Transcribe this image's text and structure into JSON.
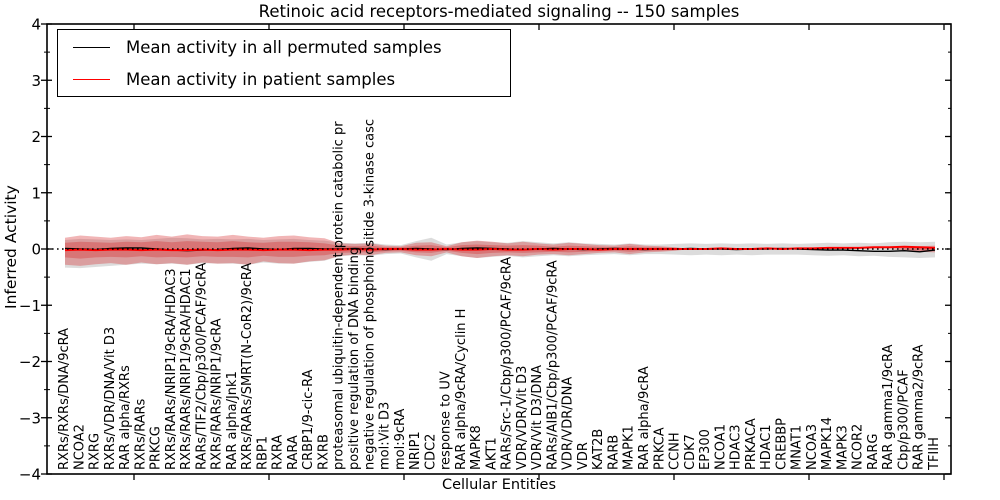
{
  "figure": {
    "title": "Retinoic acid receptors-mediated signaling -- 150 samples",
    "xlabel": "Cellular Entities",
    "ylabel": "Inferred Activity",
    "legend": [
      {
        "label": "Mean activity in all permuted samples",
        "color": "#000000"
      },
      {
        "label": "Mean activity in patient samples",
        "color": "#ff0000"
      }
    ],
    "y_ticks": [
      "4",
      "3",
      "2",
      "1",
      "0",
      "−1",
      "−2",
      "−3",
      "−4"
    ]
  },
  "chart_data": {
    "type": "line",
    "title": "Retinoic acid receptors-mediated signaling -- 150 samples",
    "xlabel": "Cellular Entities",
    "ylabel": "Inferred Activity",
    "ylim": [
      -4,
      4
    ],
    "grid": false,
    "legend_position": "upper left",
    "zero_line": 0,
    "categories": [
      "RXRs/RXRs/DNA/9cRA",
      "NCOA2",
      "RXRG",
      "RXRs/VDR/DNA/Vit D3",
      "RAR alpha/RXRs",
      "RXRs/RARs",
      "PRKCG",
      "RXRs/RARs/NRIP1/9cRA/HDAC3",
      "RXRs/RARs/NRIP1/9cRA/HDAC1",
      "RARs/TIF2/Cbp/p300/PCAF/9cRA",
      "RXRs/RARs/NRIP1/9cRA",
      "RAR alpha/Jnk1",
      "RXRs/RARs/SMRT(N-CoR2)/9cRA",
      "RBP1",
      "RXRA",
      "RARA",
      "CRBP1/9-cic-RA",
      "RXRB",
      "proteasomal ubiquitin-dependent protein catabolic pr",
      "positive regulation of DNA binding",
      "negative regulation of phosphoinositide 3-kinase casc",
      "mol:Vit D3",
      "mol:9cRA",
      "NRIP1",
      "CDC2",
      "response to UV",
      "RAR alpha/9cRA/Cyclin H",
      "MAPK8",
      "AKT1",
      "RARs/Src-1/Cbp/p300/PCAF/9cRA",
      "VDR/VDR/Vit D3",
      "VDR/Vit D3/DNA",
      "RARs/AIB1/Cbp/p300/PCAF/9cRA",
      "VDR/VDR/DNA",
      "VDR",
      "KAT2B",
      "RARB",
      "MAPK1",
      "RAR alpha/9cRA",
      "PRKCA",
      "CCNH",
      "CDK7",
      "EP300",
      "NCOA1",
      "HDAC3",
      "PRKACA",
      "HDAC1",
      "CREBBP",
      "MNAT1",
      "NCOA3",
      "MAPK14",
      "MAPK3",
      "NCOR2",
      "RARG",
      "RAR gamma1/9cRA",
      "Cbp/p300/PCAF",
      "RAR gamma2/9cRA",
      "TFIIH"
    ],
    "series": [
      {
        "name": "Mean activity in all permuted samples",
        "color": "#000000",
        "values": [
          0.01,
          0.0,
          -0.01,
          0.01,
          0.02,
          0.02,
          0.0,
          -0.02,
          -0.03,
          -0.02,
          -0.01,
          0.01,
          0.02,
          0.0,
          -0.01,
          0.01,
          0.01,
          0.0,
          0.0,
          0.01,
          0.0,
          -0.01,
          0.0,
          0.01,
          0.0,
          -0.01,
          0.01,
          0.02,
          0.01,
          0.0,
          -0.01,
          0.0,
          0.01,
          0.0,
          -0.01,
          0.0,
          0.01,
          0.0,
          -0.01,
          0.0,
          0.0,
          0.01,
          0.0,
          0.0,
          -0.01,
          0.0,
          0.0,
          0.01,
          0.0,
          -0.01,
          -0.02,
          -0.02,
          -0.03,
          -0.04,
          -0.04,
          -0.03,
          -0.05,
          -0.02
        ]
      },
      {
        "name": "Mean activity in patient samples",
        "color": "#ff0000",
        "values": [
          -0.02,
          -0.01,
          -0.02,
          -0.01,
          -0.01,
          -0.02,
          -0.01,
          -0.02,
          -0.02,
          -0.01,
          -0.02,
          -0.01,
          -0.01,
          -0.02,
          -0.01,
          -0.01,
          -0.02,
          -0.01,
          -0.01,
          0.0,
          -0.01,
          0.0,
          0.0,
          -0.01,
          -0.01,
          0.0,
          -0.01,
          -0.01,
          0.0,
          -0.01,
          -0.01,
          0.0,
          -0.01,
          0.0,
          0.0,
          -0.01,
          0.0,
          0.0,
          0.0,
          0.0,
          0.0,
          0.0,
          0.0,
          0.01,
          0.0,
          0.0,
          0.01,
          0.0,
          0.01,
          0.01,
          0.02,
          0.02,
          0.02,
          0.03,
          0.03,
          0.04,
          0.03,
          0.02
        ]
      }
    ],
    "bands": [
      {
        "name": "permuted-samples-range",
        "color": "#808080",
        "opacity": 0.28,
        "upper": [
          0.16,
          0.18,
          0.17,
          0.16,
          0.17,
          0.16,
          0.18,
          0.2,
          0.19,
          0.17,
          0.18,
          0.17,
          0.18,
          0.16,
          0.17,
          0.18,
          0.16,
          0.15,
          0.11,
          0.1,
          0.11,
          0.08,
          0.07,
          0.14,
          0.2,
          0.08,
          0.12,
          0.14,
          0.12,
          0.11,
          0.14,
          0.12,
          0.1,
          0.12,
          0.1,
          0.09,
          0.08,
          0.1,
          0.08,
          0.08,
          0.09,
          0.1,
          0.09,
          0.1,
          0.09,
          0.1,
          0.09,
          0.1,
          0.09,
          0.1,
          0.11,
          0.1,
          0.11,
          0.1,
          0.12,
          0.13,
          0.12,
          0.13
        ],
        "lower": [
          -0.33,
          -0.34,
          -0.32,
          -0.3,
          -0.28,
          -0.26,
          -0.27,
          -0.26,
          -0.28,
          -0.25,
          -0.26,
          -0.26,
          -0.28,
          -0.24,
          -0.26,
          -0.26,
          -0.23,
          -0.21,
          -0.13,
          -0.11,
          -0.12,
          -0.09,
          -0.08,
          -0.15,
          -0.21,
          -0.09,
          -0.13,
          -0.16,
          -0.14,
          -0.12,
          -0.15,
          -0.13,
          -0.11,
          -0.13,
          -0.11,
          -0.1,
          -0.09,
          -0.11,
          -0.09,
          -0.09,
          -0.1,
          -0.11,
          -0.1,
          -0.11,
          -0.1,
          -0.11,
          -0.1,
          -0.1,
          -0.1,
          -0.11,
          -0.12,
          -0.11,
          -0.13,
          -0.12,
          -0.14,
          -0.15,
          -0.16,
          -0.15
        ]
      },
      {
        "name": "patient-samples-range-outer",
        "color": "#d62728",
        "opacity": 0.34,
        "upper": [
          0.2,
          0.24,
          0.22,
          0.2,
          0.23,
          0.21,
          0.25,
          0.22,
          0.26,
          0.23,
          0.22,
          0.25,
          0.22,
          0.2,
          0.23,
          0.24,
          0.21,
          0.19,
          0.1,
          0.09,
          0.1,
          0.06,
          0.05,
          0.11,
          0.12,
          0.05,
          0.12,
          0.15,
          0.13,
          0.1,
          0.13,
          0.1,
          0.08,
          0.11,
          0.09,
          0.07,
          0.06,
          0.09,
          0.06,
          0.05,
          0.03,
          0.0,
          0.0,
          0.0,
          0.0,
          0.0,
          0.0,
          0.0,
          0.0,
          0.0,
          0.0,
          0.0,
          0.0,
          0.0,
          0.0,
          0.02,
          0.05,
          0.06
        ],
        "lower": [
          -0.28,
          -0.3,
          -0.27,
          -0.25,
          -0.28,
          -0.24,
          -0.27,
          -0.25,
          -0.28,
          -0.24,
          -0.26,
          -0.25,
          -0.28,
          -0.22,
          -0.25,
          -0.26,
          -0.22,
          -0.2,
          -0.12,
          -0.1,
          -0.11,
          -0.07,
          -0.06,
          -0.11,
          -0.13,
          -0.06,
          -0.13,
          -0.16,
          -0.13,
          -0.11,
          -0.13,
          -0.1,
          -0.09,
          -0.11,
          -0.09,
          -0.07,
          -0.06,
          -0.09,
          -0.06,
          -0.05,
          -0.03,
          0.0,
          0.0,
          0.0,
          0.0,
          0.0,
          0.0,
          0.0,
          0.0,
          0.0,
          0.0,
          0.0,
          0.0,
          0.0,
          0.0,
          -0.02,
          -0.05,
          -0.06
        ]
      },
      {
        "name": "patient-samples-range-inner",
        "color": "#d62728",
        "opacity": 0.34,
        "upper": [
          0.11,
          0.13,
          0.12,
          0.11,
          0.13,
          0.12,
          0.14,
          0.12,
          0.14,
          0.13,
          0.12,
          0.14,
          0.12,
          0.11,
          0.13,
          0.13,
          0.12,
          0.1,
          0.06,
          0.05,
          0.06,
          0.03,
          0.03,
          0.06,
          0.07,
          0.03,
          0.07,
          0.08,
          0.07,
          0.06,
          0.07,
          0.06,
          0.04,
          0.06,
          0.05,
          0.04,
          0.03,
          0.05,
          0.03,
          0.03,
          0.02,
          0.0,
          0.0,
          0.0,
          0.0,
          0.0,
          0.0,
          0.0,
          0.0,
          0.0,
          0.0,
          0.0,
          0.0,
          0.0,
          0.0,
          0.01,
          0.03,
          0.03
        ],
        "lower": [
          -0.15,
          -0.17,
          -0.15,
          -0.14,
          -0.15,
          -0.13,
          -0.15,
          -0.14,
          -0.15,
          -0.13,
          -0.14,
          -0.14,
          -0.15,
          -0.12,
          -0.14,
          -0.14,
          -0.12,
          -0.11,
          -0.07,
          -0.06,
          -0.06,
          -0.04,
          -0.03,
          -0.06,
          -0.07,
          -0.03,
          -0.07,
          -0.09,
          -0.07,
          -0.06,
          -0.07,
          -0.06,
          -0.05,
          -0.06,
          -0.05,
          -0.04,
          -0.03,
          -0.05,
          -0.03,
          -0.03,
          -0.02,
          0.0,
          0.0,
          0.0,
          0.0,
          0.0,
          0.0,
          0.0,
          0.0,
          0.0,
          0.0,
          0.0,
          0.0,
          0.0,
          0.0,
          -0.01,
          -0.03,
          -0.03
        ]
      }
    ]
  }
}
